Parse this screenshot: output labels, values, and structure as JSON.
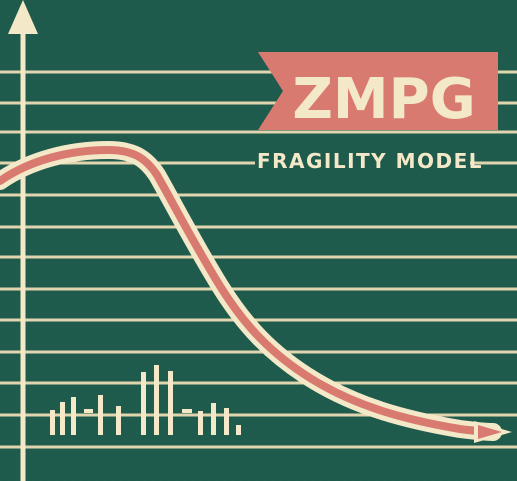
{
  "poster": {
    "title": "ZMPG",
    "subtitle": "FRAGILITY MODEL"
  },
  "colors": {
    "background": "#1f5b4d",
    "cream": "#f3e8c7",
    "banner": "#d97a70",
    "line": "#ecdcb5"
  }
}
